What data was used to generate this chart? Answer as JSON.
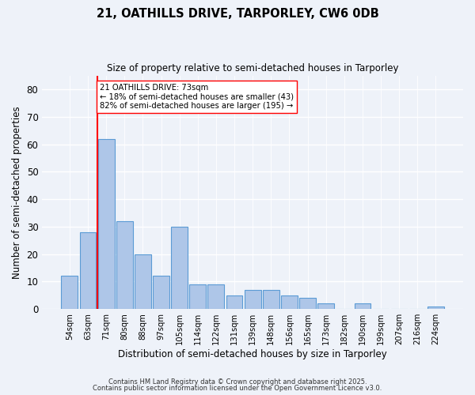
{
  "title1": "21, OATHILLS DRIVE, TARPORLEY, CW6 0DB",
  "title2": "Size of property relative to semi-detached houses in Tarporley",
  "xlabel": "Distribution of semi-detached houses by size in Tarporley",
  "ylabel": "Number of semi-detached properties",
  "categories": [
    "54sqm",
    "63sqm",
    "71sqm",
    "80sqm",
    "88sqm",
    "97sqm",
    "105sqm",
    "114sqm",
    "122sqm",
    "131sqm",
    "139sqm",
    "148sqm",
    "156sqm",
    "165sqm",
    "173sqm",
    "182sqm",
    "190sqm",
    "199sqm",
    "207sqm",
    "216sqm",
    "224sqm"
  ],
  "values": [
    12,
    28,
    62,
    32,
    20,
    12,
    30,
    9,
    9,
    5,
    7,
    7,
    5,
    4,
    2,
    0,
    2,
    0,
    0,
    0,
    1
  ],
  "bar_color": "#aec6e8",
  "bar_edge_color": "#5b9bd5",
  "ylim": [
    0,
    85
  ],
  "yticks": [
    0,
    10,
    20,
    30,
    40,
    50,
    60,
    70,
    80
  ],
  "property_label": "21 OATHILLS DRIVE: 73sqm",
  "annotation_line1": "← 18% of semi-detached houses are smaller (43)",
  "annotation_line2": "82% of semi-detached houses are larger (195) →",
  "vline_bin_index": 2,
  "footer1": "Contains HM Land Registry data © Crown copyright and database right 2025.",
  "footer2": "Contains public sector information licensed under the Open Government Licence v3.0.",
  "bg_color": "#eef2f9",
  "plot_bg_color": "#eef2f9"
}
